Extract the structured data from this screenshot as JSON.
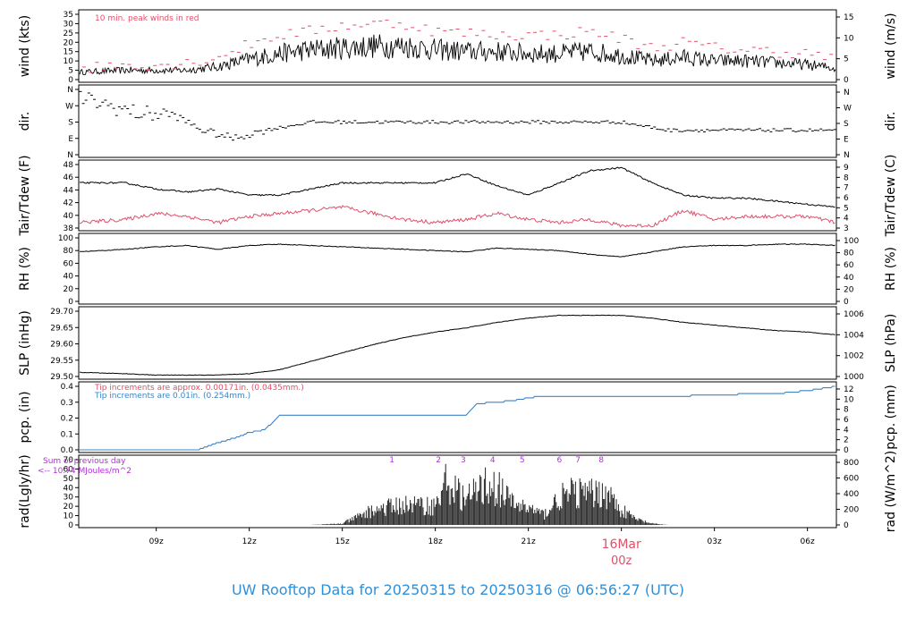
{
  "title": "UW Rooftop Data for 20250315  to  20250316 @ 06:56:27  (UTC)",
  "colors": {
    "black": "#000000",
    "red": "#e0506a",
    "blue": "#3b83c8",
    "purple": "#b030d8",
    "title": "#2f8fd8"
  },
  "x_ticks": [
    "09z",
    "12z",
    "15z",
    "18z",
    "21z",
    "00z",
    "03z",
    "06z"
  ],
  "day_marker": {
    "date": "16Mar",
    "time": "00z"
  },
  "panels": [
    {
      "id": "wind",
      "left_label": "wind (kts)",
      "right_label": "wind (m/s)",
      "left_ticks": [
        "35",
        "30",
        "25",
        "20",
        "15",
        "10",
        "5",
        "0"
      ],
      "right_ticks": [
        "15",
        "10",
        "5",
        "0"
      ],
      "note": "10 min. peak winds in red"
    },
    {
      "id": "dir",
      "left_label": "dir.",
      "right_label": "dir.",
      "left_ticks": [
        "N",
        "W",
        "S",
        "E",
        "N"
      ],
      "right_ticks": [
        "N",
        "W",
        "S",
        "E",
        "N"
      ]
    },
    {
      "id": "temp",
      "left_label": "Tair/Tdew (F)",
      "right_label": "Tair/Tdew (C)",
      "left_ticks": [
        "48",
        "46",
        "44",
        "42",
        "40",
        "38"
      ],
      "right_ticks": [
        "9",
        "8",
        "7",
        "6",
        "5",
        "4",
        "3"
      ]
    },
    {
      "id": "rh",
      "left_label": "RH (%)",
      "right_label": "RH (%)",
      "left_ticks": [
        "100",
        "80",
        "60",
        "40",
        "20",
        "0"
      ],
      "right_ticks": [
        "100",
        "80",
        "60",
        "40",
        "20",
        "0"
      ]
    },
    {
      "id": "slp",
      "left_label": "SLP (inHg)",
      "right_label": "SLP (hPa)",
      "left_ticks": [
        "29.70",
        "29.65",
        "29.60",
        "29.55",
        "29.50"
      ],
      "right_ticks": [
        "1006",
        "1004",
        "1002",
        "1000"
      ]
    },
    {
      "id": "pcp",
      "left_label": "pcp. (in)",
      "right_label": "pcp. (mm)",
      "left_ticks": [
        "0.4",
        "0.3",
        "0.2",
        "0.1",
        "0.0"
      ],
      "right_ticks": [
        "12",
        "10",
        "8",
        "6",
        "4",
        "2",
        "0"
      ],
      "note1": "Tip increments are approx. 0.00171in. (0.0435mm.)",
      "note2": "Tip increments are 0.01in. (0.254mm.)"
    },
    {
      "id": "rad",
      "left_label": "rad(Lgly/hr)",
      "right_label": "rad (W/m^2)",
      "left_ticks": [
        "70",
        "60",
        "50",
        "40",
        "30",
        "20",
        "10",
        "0"
      ],
      "right_ticks": [
        "800",
        "600",
        "400",
        "200",
        "0"
      ],
      "note1": "Sum of previous day",
      "note2": "<-- 10.74 MJoules/m^2",
      "uv_labels": [
        "1",
        "2",
        "3",
        "4",
        "5",
        "6",
        "7",
        "8"
      ]
    }
  ],
  "chart_data": [
    {
      "type": "line",
      "panel": "wind",
      "xlabel": "",
      "ylabel": "wind (kts)",
      "ylim": [
        0,
        35
      ],
      "x": [
        "06:30z",
        "08:00z",
        "09:00z",
        "10:00z",
        "11:00z",
        "12:00z",
        "13:00z",
        "14:00z",
        "15:00z",
        "16:00z",
        "17:00z",
        "18:00z",
        "19:00z",
        "20:00z",
        "21:00z",
        "22:00z",
        "23:00z",
        "00:00z",
        "01:00z",
        "02:00z",
        "03:00z",
        "04:00z",
        "05:00z",
        "06:00z",
        "06:56z"
      ],
      "series": [
        {
          "values": [
            4,
            5,
            5,
            5,
            7,
            11,
            14,
            16,
            17,
            18,
            18,
            16,
            15,
            15,
            14,
            14,
            15,
            13,
            10,
            12,
            10,
            10,
            9,
            8,
            6
          ]
        },
        {
          "name": "10 min. peak winds in red",
          "values": [
            6,
            8,
            8,
            9,
            12,
            19,
            24,
            26,
            29,
            30,
            30,
            26,
            25,
            24,
            24,
            24,
            26,
            22,
            17,
            20,
            17,
            16,
            15,
            14,
            11
          ]
        }
      ]
    },
    {
      "type": "scatter",
      "panel": "dir",
      "ylim": [
        "N",
        "N"
      ],
      "x": [
        "06:30z",
        "07:30z",
        "08:30z",
        "09:30z",
        "10:30z",
        "11:30z",
        "12:30z",
        "14:00z",
        "16:00z",
        "18:00z",
        "20:00z",
        "22:00z",
        "00:00z",
        "01:30z",
        "03:00z",
        "05:00z",
        "06:56z"
      ],
      "values": [
        "NW",
        "W",
        "SW",
        "SW",
        "SE",
        "E",
        "SE",
        "S",
        "S",
        "S",
        "S",
        "S",
        "S",
        "SE",
        "SE",
        "SE",
        "SE"
      ]
    },
    {
      "type": "line",
      "panel": "temp",
      "ylim": [
        37,
        48
      ],
      "x": [
        "06:30z",
        "08:00z",
        "09:00z",
        "10:00z",
        "11:00z",
        "12:00z",
        "13:00z",
        "14:00z",
        "15:00z",
        "16:00z",
        "17:00z",
        "18:00z",
        "19:00z",
        "20:00z",
        "21:00z",
        "22:00z",
        "23:00z",
        "00:00z",
        "01:00z",
        "02:00z",
        "03:00z",
        "04:00z",
        "05:00z",
        "06:00z",
        "06:56z"
      ],
      "series": [
        {
          "name": "Tair",
          "values": [
            45,
            45,
            44,
            43.5,
            44,
            43,
            43,
            44,
            45,
            45,
            45,
            45,
            46.5,
            44.5,
            43,
            45,
            47,
            47.5,
            45,
            43,
            42.5,
            42.5,
            42,
            41.5,
            41
          ]
        },
        {
          "name": "Tdew",
          "values": [
            38.5,
            39,
            40,
            39.5,
            38.5,
            39.5,
            40,
            40.5,
            41,
            40,
            39,
            38.5,
            39,
            40,
            39,
            38.5,
            39,
            38,
            38,
            40.5,
            39,
            39.5,
            39.5,
            39.5,
            38.5
          ]
        }
      ]
    },
    {
      "type": "line",
      "panel": "rh",
      "ylim": [
        0,
        100
      ],
      "x": [
        "06:30z",
        "08:00z",
        "09:00z",
        "10:00z",
        "11:00z",
        "12:00z",
        "13:00z",
        "14:00z",
        "15:00z",
        "16:00z",
        "17:00z",
        "18:00z",
        "19:00z",
        "20:00z",
        "21:00z",
        "22:00z",
        "23:00z",
        "00:00z",
        "01:00z",
        "02:00z",
        "03:00z",
        "04:00z",
        "05:00z",
        "06:00z",
        "06:56z"
      ],
      "values": [
        78,
        82,
        86,
        88,
        82,
        88,
        90,
        88,
        86,
        84,
        82,
        80,
        78,
        84,
        82,
        80,
        74,
        70,
        78,
        86,
        88,
        88,
        90,
        90,
        88
      ]
    },
    {
      "type": "line",
      "panel": "slp",
      "ylabel": "SLP (inHg)",
      "ylim": [
        29.49,
        29.74
      ],
      "x": [
        "06:30z",
        "08:00z",
        "09:00z",
        "10:00z",
        "11:00z",
        "12:00z",
        "13:00z",
        "14:00z",
        "15:00z",
        "16:00z",
        "17:00z",
        "18:00z",
        "19:00z",
        "20:00z",
        "21:00z",
        "22:00z",
        "23:00z",
        "00:00z",
        "01:00z",
        "02:00z",
        "03:00z",
        "04:00z",
        "05:00z",
        "06:00z",
        "06:56z"
      ],
      "values": [
        29.51,
        29.505,
        29.5,
        29.5,
        29.5,
        29.505,
        29.52,
        29.55,
        29.58,
        29.61,
        29.635,
        29.655,
        29.67,
        29.69,
        29.705,
        29.715,
        29.715,
        29.715,
        29.705,
        29.69,
        29.68,
        29.67,
        29.66,
        29.655,
        29.645
      ]
    },
    {
      "type": "line",
      "panel": "pcp",
      "ylim": [
        0,
        0.45
      ],
      "x": [
        "06:30z",
        "10:20z",
        "11:00z",
        "11:30z",
        "12:00z",
        "12:30z",
        "13:00z",
        "15:00z",
        "17:00z",
        "19:00z",
        "19:20z",
        "20:30z",
        "21:00z",
        "21:20z",
        "22:30z",
        "02:00z",
        "02:30z",
        "05:00z",
        "06:00z",
        "06:56z"
      ],
      "series": [
        {
          "name": "Tip increments are 0.01in. (0.254mm.)",
          "values": [
            0.0,
            0.0,
            0.05,
            0.08,
            0.12,
            0.14,
            0.24,
            0.24,
            0.24,
            0.24,
            0.32,
            0.34,
            0.36,
            0.37,
            0.37,
            0.37,
            0.38,
            0.39,
            0.41,
            0.44
          ]
        }
      ]
    },
    {
      "type": "bar",
      "panel": "rad",
      "ylabel": "rad(Lgly/hr)",
      "ylim": [
        0,
        70
      ],
      "x": [
        "06:30z",
        "13:00z",
        "14:00z",
        "15:00z",
        "16:00z",
        "17:00z",
        "18:00z",
        "18:20z",
        "19:00z",
        "19:40z",
        "20:00z",
        "20:30z",
        "21:00z",
        "21:30z",
        "22:00z",
        "22:30z",
        "23:00z",
        "23:30z",
        "00:00z",
        "00:30z",
        "01:00z",
        "01:30z",
        "06:56z"
      ],
      "values": [
        0,
        0,
        0,
        2,
        22,
        30,
        28,
        62,
        38,
        60,
        55,
        32,
        25,
        15,
        40,
        48,
        45,
        50,
        22,
        8,
        2,
        0,
        0
      ]
    }
  ]
}
